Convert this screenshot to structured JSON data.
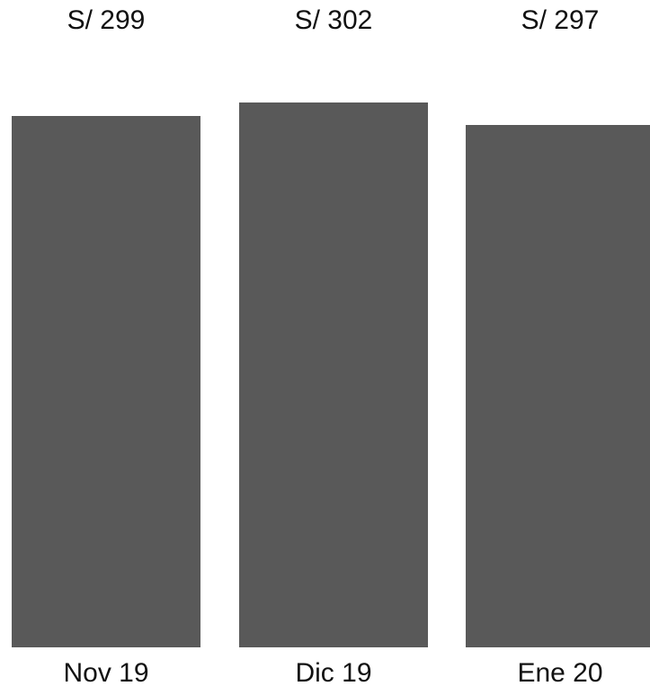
{
  "chart_data": {
    "type": "bar",
    "categories": [
      "Nov 19",
      "Dic 19",
      "Ene 20"
    ],
    "values": [
      299,
      302,
      297
    ],
    "value_labels": [
      "S/ 299",
      "S/ 302",
      "S/ 297"
    ],
    "title": "",
    "xlabel": "",
    "ylabel": "",
    "bar_color": "#595959",
    "grid": false,
    "legend": "none"
  }
}
